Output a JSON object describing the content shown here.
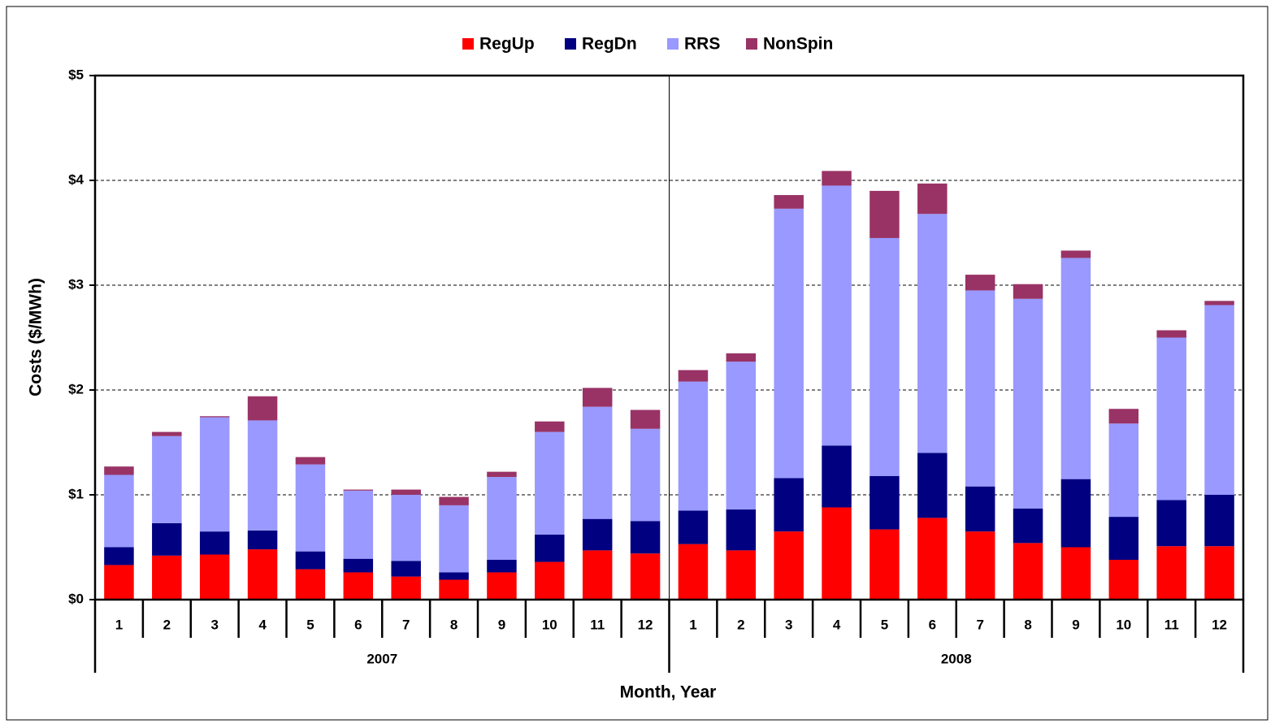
{
  "chart_data": {
    "type": "stacked-bar",
    "x_label": "Month, Year",
    "y_label": "Costs ($/MWh)",
    "categories": [
      "1",
      "2",
      "3",
      "4",
      "5",
      "6",
      "7",
      "8",
      "9",
      "10",
      "11",
      "12",
      "1",
      "2",
      "3",
      "4",
      "5",
      "6",
      "7",
      "8",
      "9",
      "10",
      "11",
      "12"
    ],
    "x_groups": [
      "2007",
      "2008"
    ],
    "series": [
      {
        "name": "RegUp",
        "color": "#ff0000",
        "values": [
          0.33,
          0.42,
          0.43,
          0.48,
          0.29,
          0.26,
          0.22,
          0.19,
          0.26,
          0.36,
          0.47,
          0.44,
          0.53,
          0.47,
          0.65,
          0.88,
          0.67,
          0.78,
          0.65,
          0.54,
          0.5,
          0.38,
          0.51,
          0.51
        ]
      },
      {
        "name": "RegDn",
        "color": "#000080",
        "values": [
          0.17,
          0.31,
          0.22,
          0.18,
          0.17,
          0.13,
          0.15,
          0.07,
          0.12,
          0.26,
          0.3,
          0.31,
          0.32,
          0.39,
          0.51,
          0.59,
          0.51,
          0.62,
          0.43,
          0.33,
          0.65,
          0.41,
          0.44,
          0.49
        ]
      },
      {
        "name": "RRS",
        "color": "#9999ff",
        "values": [
          0.69,
          0.83,
          1.09,
          1.05,
          0.83,
          0.65,
          0.63,
          0.64,
          0.79,
          0.98,
          1.07,
          0.88,
          1.23,
          1.41,
          2.57,
          2.48,
          2.27,
          2.28,
          1.87,
          2.0,
          2.11,
          0.89,
          1.55,
          1.81
        ]
      },
      {
        "name": "NonSpin",
        "color": "#993366",
        "values": [
          0.08,
          0.04,
          0.01,
          0.23,
          0.07,
          0.01,
          0.05,
          0.08,
          0.05,
          0.1,
          0.18,
          0.18,
          0.11,
          0.08,
          0.13,
          0.14,
          0.45,
          0.29,
          0.15,
          0.14,
          0.07,
          0.14,
          0.07,
          0.04
        ]
      }
    ],
    "ylim": [
      0,
      5
    ],
    "yticks": [
      {
        "value": 0,
        "label": "$0"
      },
      {
        "value": 1,
        "label": "$1"
      },
      {
        "value": 2,
        "label": "$2"
      },
      {
        "value": 3,
        "label": "$3"
      },
      {
        "value": 4,
        "label": "$4"
      },
      {
        "value": 5,
        "label": "$5"
      }
    ],
    "grid": true
  }
}
